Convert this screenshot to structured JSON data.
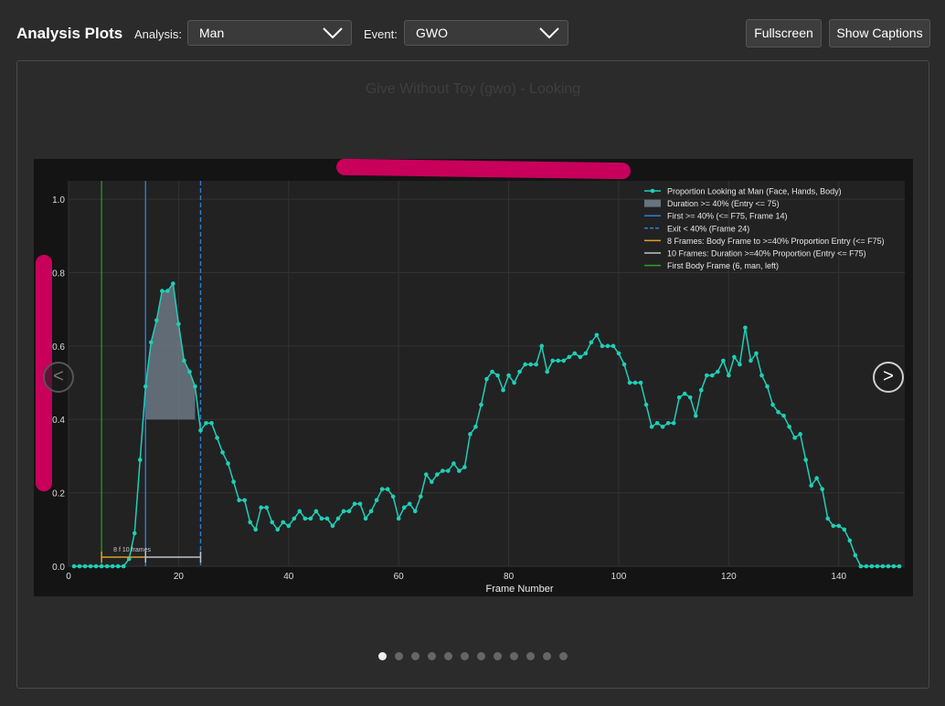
{
  "header": {
    "title": "Analysis Plots",
    "analysis_label": "Analysis:",
    "analysis_value": "Man",
    "event_label": "Event:",
    "event_value": "GWO",
    "fullscreen_label": "Fullscreen",
    "captions_label": "Show Captions"
  },
  "panel": {
    "title": "Give Without Toy (gwo) - Looking",
    "prev_label": "<",
    "next_label": ">",
    "dot_count": 12,
    "active_dot": 0
  },
  "colors": {
    "series": "#1fcfb8",
    "entry_line": "#2a7fd4",
    "body_line": "#2ca02c",
    "annot_orange": "#d9a032",
    "annot_white": "#b8c4d0",
    "fill": "#7a8a99",
    "redaction": "#c8005c"
  },
  "chart_data": {
    "type": "line",
    "xlabel": "Frame Number",
    "ylabel": "",
    "xlim": [
      0,
      152
    ],
    "ylim": [
      0,
      1.05
    ],
    "xticks": [
      0,
      20,
      40,
      60,
      80,
      100,
      120,
      140
    ],
    "yticks": [
      "0.0",
      "0.2",
      "0.4",
      "0.6",
      "0.8",
      "1.0"
    ],
    "legend": [
      {
        "label": "Proportion Looking at Man (Face, Hands, Body)",
        "kind": "line-marker"
      },
      {
        "label": "Duration >= 40% (Entry <= 75)",
        "kind": "patch"
      },
      {
        "label": "First >= 40% (<= F75, Frame 14)",
        "kind": "solid-blue"
      },
      {
        "label": "Exit < 40% (Frame 24)",
        "kind": "dashed-blue"
      },
      {
        "label": "8 Frames: Body Frame to >=40% Proportion Entry (<= F75)",
        "kind": "orange"
      },
      {
        "label": "10 Frames: Duration >=40% Proportion (Entry <= F75)",
        "kind": "white"
      },
      {
        "label": "First Body Frame (6, man, left)",
        "kind": "green"
      }
    ],
    "annotation": "8 f 10 frames",
    "first_body_frame": 6,
    "entry_frame": 14,
    "exit_frame": 24,
    "threshold": 0.4,
    "x": [
      1,
      2,
      3,
      4,
      5,
      6,
      7,
      8,
      9,
      10,
      11,
      12,
      13,
      14,
      15,
      16,
      17,
      18,
      19,
      20,
      21,
      22,
      23,
      24,
      25,
      26,
      27,
      28,
      29,
      30,
      31,
      32,
      33,
      34,
      35,
      36,
      37,
      38,
      39,
      40,
      41,
      42,
      43,
      44,
      45,
      46,
      47,
      48,
      49,
      50,
      51,
      52,
      53,
      54,
      55,
      56,
      57,
      58,
      59,
      60,
      61,
      62,
      63,
      64,
      65,
      66,
      67,
      68,
      69,
      70,
      71,
      72,
      73,
      74,
      75,
      76,
      77,
      78,
      79,
      80,
      81,
      82,
      83,
      84,
      85,
      86,
      87,
      88,
      89,
      90,
      91,
      92,
      93,
      94,
      95,
      96,
      97,
      98,
      99,
      100,
      101,
      102,
      103,
      104,
      105,
      106,
      107,
      108,
      109,
      110,
      111,
      112,
      113,
      114,
      115,
      116,
      117,
      118,
      119,
      120,
      121,
      122,
      123,
      124,
      125,
      126,
      127,
      128,
      129,
      130,
      131,
      132,
      133,
      134,
      135,
      136,
      137,
      138,
      139,
      140,
      141,
      142,
      143,
      144,
      145,
      146,
      147,
      148,
      149,
      150,
      151
    ],
    "values": [
      0,
      0,
      0,
      0,
      0,
      0,
      0,
      0,
      0,
      0,
      0.02,
      0.09,
      0.29,
      0.49,
      0.61,
      0.67,
      0.75,
      0.75,
      0.77,
      0.66,
      0.56,
      0.53,
      0.49,
      0.37,
      0.39,
      0.39,
      0.35,
      0.31,
      0.28,
      0.23,
      0.18,
      0.18,
      0.12,
      0.1,
      0.16,
      0.16,
      0.12,
      0.1,
      0.12,
      0.11,
      0.13,
      0.15,
      0.13,
      0.13,
      0.15,
      0.13,
      0.13,
      0.11,
      0.13,
      0.15,
      0.15,
      0.17,
      0.17,
      0.13,
      0.15,
      0.18,
      0.21,
      0.21,
      0.19,
      0.13,
      0.16,
      0.17,
      0.15,
      0.19,
      0.25,
      0.23,
      0.25,
      0.26,
      0.26,
      0.28,
      0.26,
      0.27,
      0.36,
      0.38,
      0.44,
      0.51,
      0.53,
      0.52,
      0.48,
      0.52,
      0.5,
      0.53,
      0.55,
      0.55,
      0.55,
      0.6,
      0.53,
      0.56,
      0.56,
      0.56,
      0.57,
      0.58,
      0.57,
      0.58,
      0.61,
      0.63,
      0.6,
      0.6,
      0.6,
      0.58,
      0.55,
      0.5,
      0.5,
      0.5,
      0.44,
      0.38,
      0.39,
      0.38,
      0.39,
      0.39,
      0.46,
      0.47,
      0.46,
      0.41,
      0.48,
      0.52,
      0.52,
      0.53,
      0.56,
      0.52,
      0.57,
      0.55,
      0.65,
      0.56,
      0.58,
      0.52,
      0.49,
      0.44,
      0.42,
      0.41,
      0.38,
      0.35,
      0.36,
      0.29,
      0.22,
      0.24,
      0.21,
      0.13,
      0.11,
      0.11,
      0.1,
      0.07,
      0.03,
      0,
      0,
      0,
      0,
      0,
      0,
      0,
      0
    ]
  }
}
